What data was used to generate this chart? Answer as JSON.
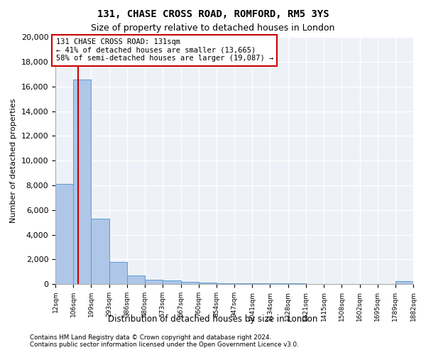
{
  "title_line1": "131, CHASE CROSS ROAD, ROMFORD, RM5 3YS",
  "title_line2": "Size of property relative to detached houses in London",
  "xlabel": "Distribution of detached houses by size in London",
  "ylabel": "Number of detached properties",
  "footnote1": "Contains HM Land Registry data © Crown copyright and database right 2024.",
  "footnote2": "Contains public sector information licensed under the Open Government Licence v3.0.",
  "bin_edges": [
    12,
    106,
    199,
    293,
    386,
    480,
    573,
    667,
    760,
    854,
    947,
    1041,
    1134,
    1228,
    1321,
    1415,
    1508,
    1602,
    1695,
    1789,
    1882
  ],
  "bar_values": [
    8100,
    16600,
    5300,
    1800,
    680,
    350,
    260,
    145,
    90,
    50,
    80,
    55,
    40,
    30,
    20,
    15,
    12,
    10,
    8,
    230
  ],
  "property_size": 131,
  "annotation_text": "131 CHASE CROSS ROAD: 131sqm\n← 41% of detached houses are smaller (13,665)\n58% of semi-detached houses are larger (19,087) →",
  "bar_color": "#aec6e8",
  "bar_edge_color": "#5b9bd5",
  "red_line_color": "#cc0000",
  "annotation_box_edge": "#cc0000",
  "ylim": [
    0,
    20000
  ],
  "yticks": [
    0,
    2000,
    4000,
    6000,
    8000,
    10000,
    12000,
    14000,
    16000,
    18000,
    20000
  ],
  "xtick_labels": [
    "12sqm",
    "106sqm",
    "199sqm",
    "293sqm",
    "386sqm",
    "480sqm",
    "573sqm",
    "667sqm",
    "760sqm",
    "854sqm",
    "947sqm",
    "1041sqm",
    "1134sqm",
    "1228sqm",
    "1321sqm",
    "1415sqm",
    "1508sqm",
    "1602sqm",
    "1695sqm",
    "1789sqm",
    "1882sqm"
  ],
  "background_color": "#eef2f8",
  "grid_color": "#ffffff"
}
